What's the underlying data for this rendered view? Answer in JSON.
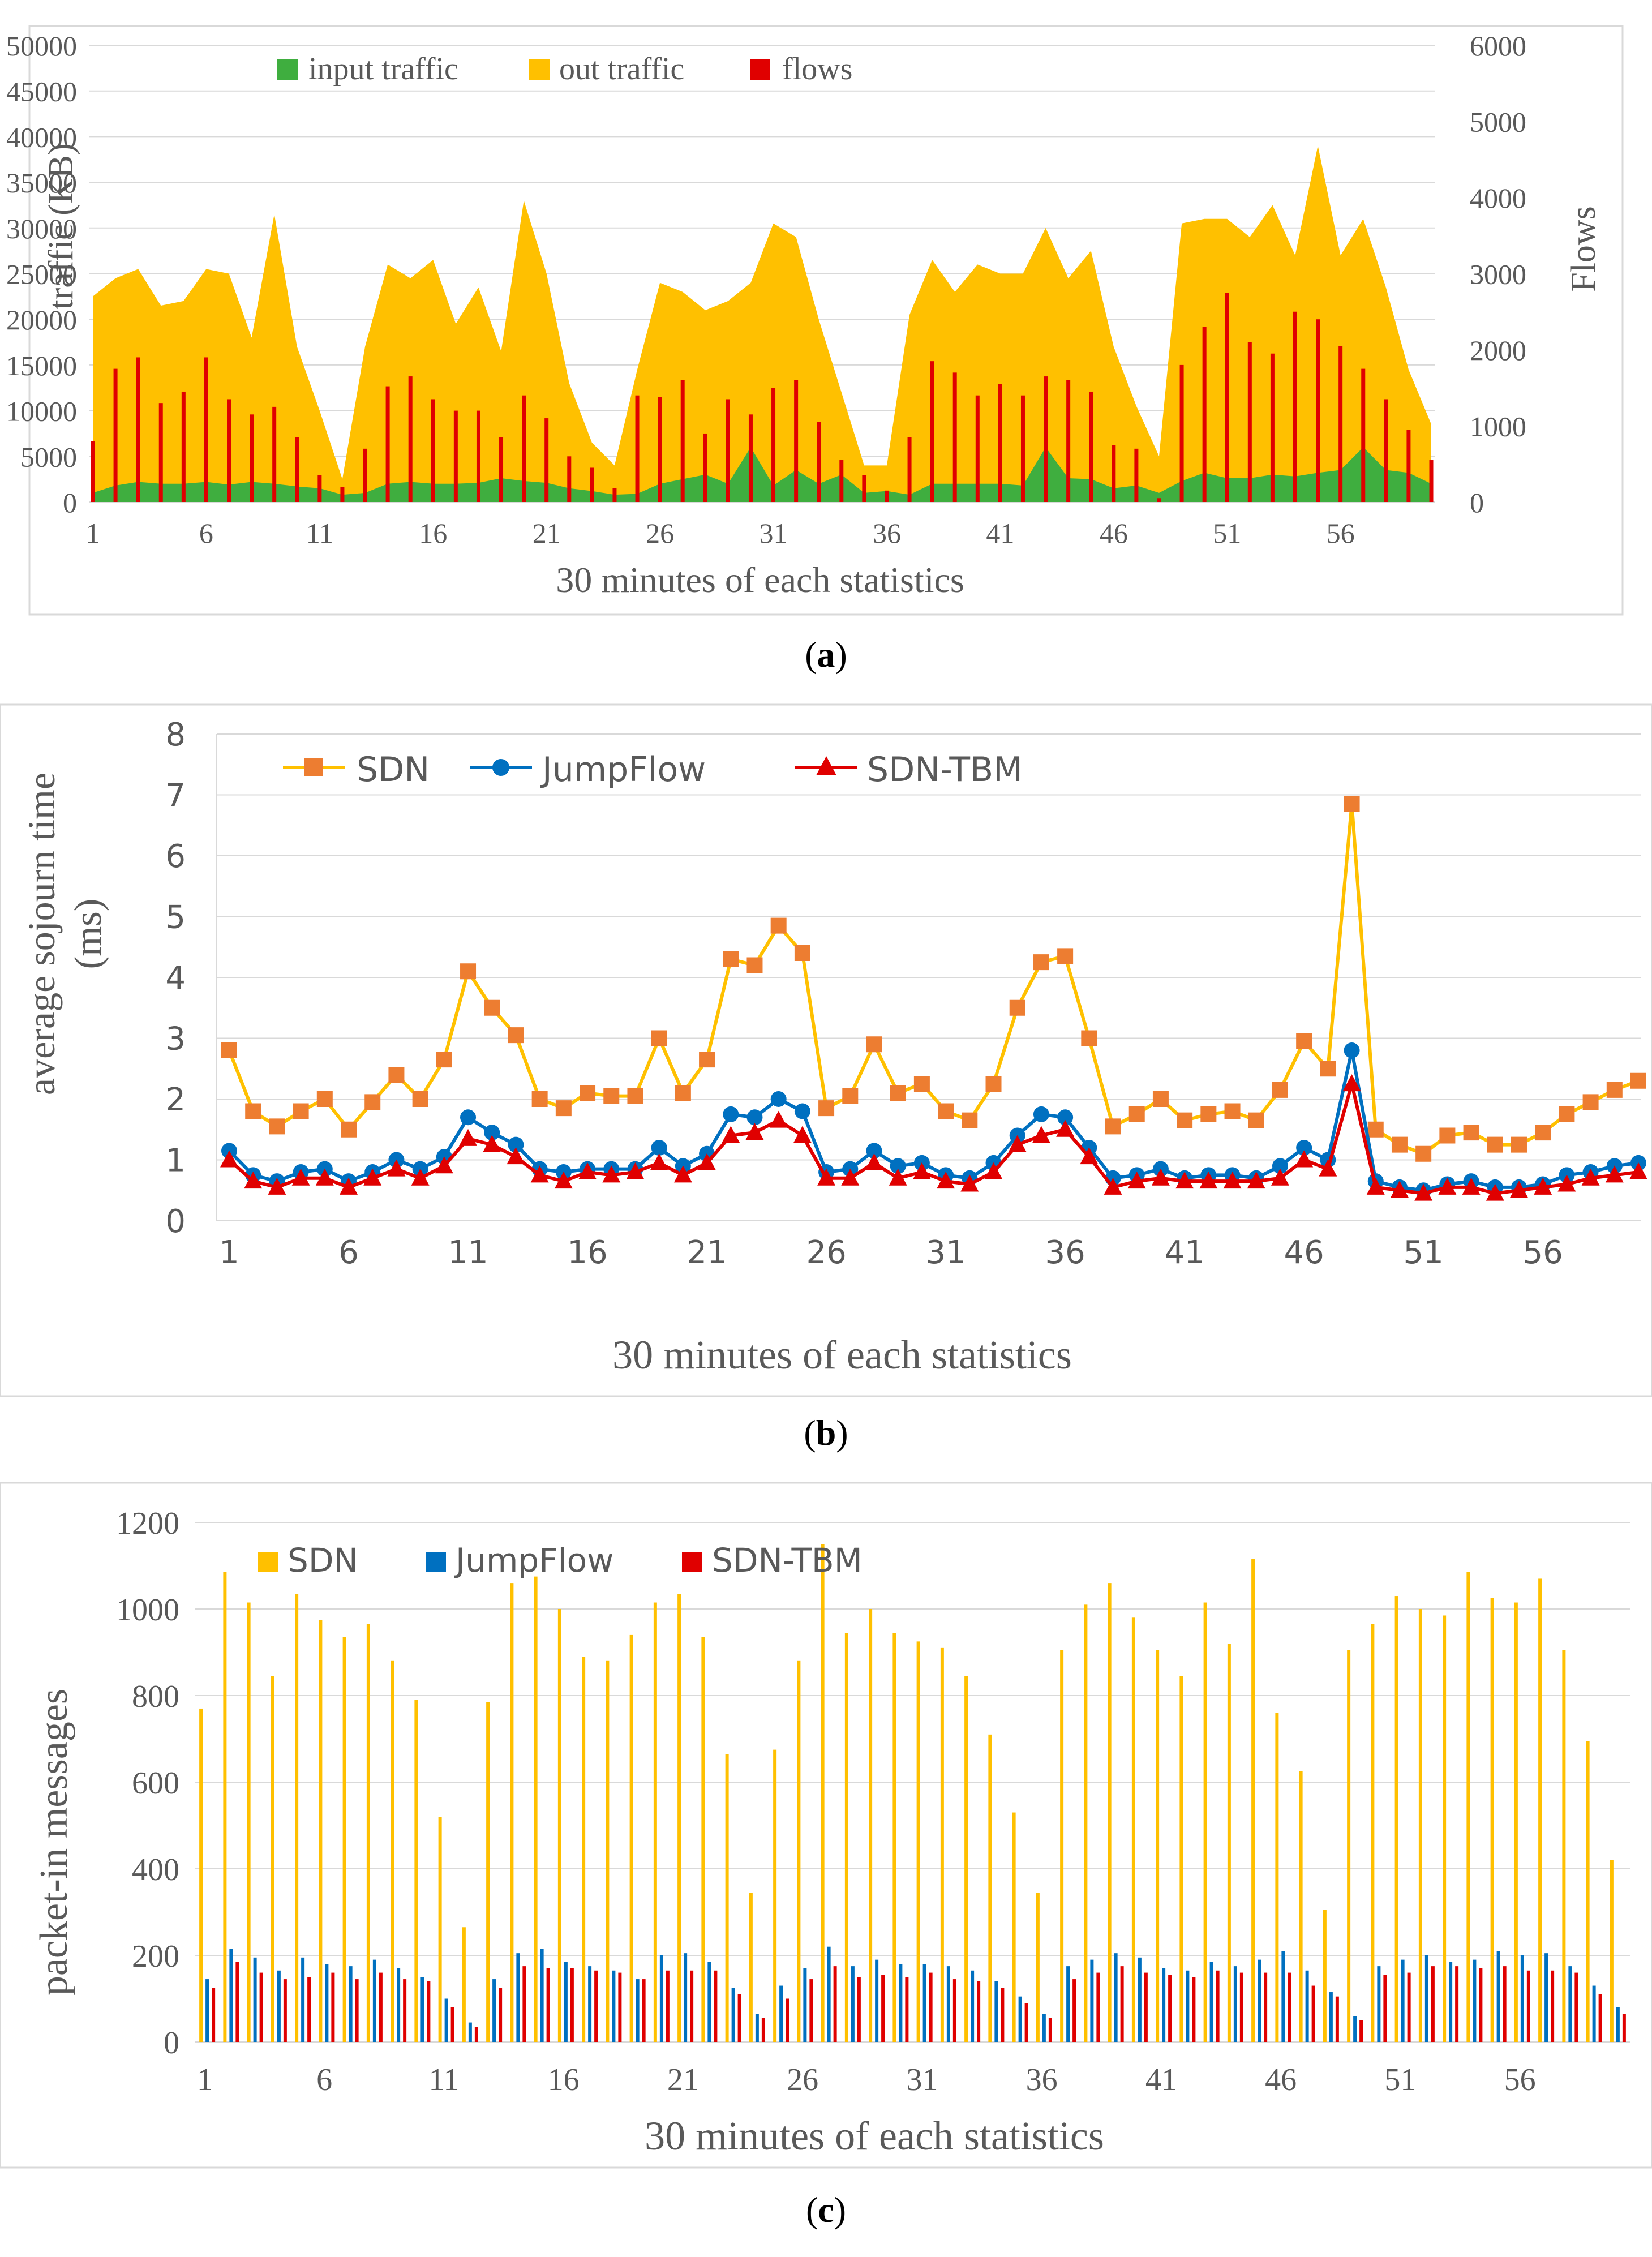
{
  "chart_data": [
    {
      "id": "a",
      "type": "area+bar",
      "caption": "(a)",
      "xlabel": "30 minutes of each statistics",
      "ylabel_left": "traffic (KB)",
      "ylabel_right": "Flows",
      "ylim_left": [
        0,
        50000
      ],
      "ylim_right": [
        0,
        6000
      ],
      "yticks_left": [
        "0",
        "5000",
        "10000",
        "15000",
        "20000",
        "25000",
        "30000",
        "35000",
        "40000",
        "45000",
        "50000"
      ],
      "yticks_right": [
        "0",
        "1000",
        "2000",
        "3000",
        "4000",
        "5000",
        "6000"
      ],
      "xticks": [
        "1",
        "6",
        "11",
        "16",
        "21",
        "26",
        "31",
        "36",
        "41",
        "46",
        "51",
        "56"
      ],
      "legend": [
        "input traffic",
        "out traffic",
        "flows"
      ],
      "colors": {
        "input": "#3fae3f",
        "out": "#ffc000",
        "flows": "#e00000",
        "grid": "#d9d9d9",
        "text": "#595959"
      },
      "x": [
        1,
        2,
        3,
        4,
        5,
        6,
        7,
        8,
        9,
        10,
        11,
        12,
        13,
        14,
        15,
        16,
        17,
        18,
        19,
        20,
        21,
        22,
        23,
        24,
        25,
        26,
        27,
        28,
        29,
        30,
        31,
        32,
        33,
        34,
        35,
        36,
        37,
        38,
        39,
        40,
        41,
        42,
        43,
        44,
        45,
        46,
        47,
        48,
        49,
        50,
        51,
        52,
        53,
        54,
        55,
        56,
        57,
        58,
        59,
        60
      ],
      "series": [
        {
          "name": "out traffic",
          "values": [
            22500,
            24500,
            25500,
            21500,
            22000,
            25500,
            25000,
            18000,
            31500,
            17000,
            10000,
            2500,
            17000,
            26000,
            24500,
            26500,
            19500,
            23500,
            16500,
            33000,
            25000,
            13000,
            6500,
            4000,
            14500,
            24000,
            23000,
            21000,
            22000,
            24000,
            30500,
            29000,
            20000,
            12000,
            4000,
            4000,
            20500,
            26500,
            23000,
            26000,
            25000,
            25000,
            30000,
            24500,
            27500,
            17000,
            10500,
            5000,
            30500,
            31000,
            31000,
            29000,
            32500,
            27000,
            39000,
            27000,
            31000,
            23500,
            14500,
            8500
          ]
        },
        {
          "name": "input traffic",
          "values": [
            1000,
            1800,
            2200,
            2000,
            2000,
            2200,
            1900,
            2200,
            2000,
            1700,
            1500,
            800,
            1000,
            2000,
            2200,
            2000,
            2000,
            2100,
            2600,
            2300,
            2100,
            1500,
            1200,
            800,
            900,
            2000,
            2500,
            3000,
            2000,
            6000,
            1800,
            3500,
            2000,
            3000,
            1000,
            1200,
            800,
            2000,
            2000,
            2000,
            2000,
            1800,
            6000,
            2600,
            2500,
            1500,
            1800,
            1000,
            2300,
            3200,
            2600,
            2600,
            3000,
            2800,
            3200,
            3500,
            6000,
            3500,
            3200,
            2000
          ]
        },
        {
          "name": "flows",
          "values": [
            800,
            1750,
            1900,
            1300,
            1450,
            1900,
            1350,
            1150,
            1250,
            850,
            350,
            200,
            700,
            1520,
            1650,
            1350,
            1200,
            1200,
            850,
            1400,
            1100,
            600,
            450,
            180,
            1400,
            1380,
            1600,
            900,
            1350,
            1150,
            1500,
            1600,
            1050,
            550,
            350,
            150,
            850,
            1850,
            1700,
            1400,
            1550,
            1400,
            1650,
            1600,
            1450,
            750,
            700,
            50,
            1800,
            2300,
            2750,
            2100,
            1950,
            2500,
            2400,
            2050,
            1750,
            1350,
            950,
            550
          ]
        }
      ]
    },
    {
      "id": "b",
      "type": "line",
      "caption": "(b)",
      "xlabel": "30 minutes of each statistics",
      "ylabel_line1": "average sojourn time",
      "ylabel_line2": "(ms)",
      "ylim": [
        0,
        8
      ],
      "yticks": [
        "0",
        "1",
        "2",
        "3",
        "4",
        "5",
        "6",
        "7",
        "8"
      ],
      "xticks": [
        "1",
        "6",
        "11",
        "16",
        "21",
        "26",
        "31",
        "36",
        "41",
        "46",
        "51",
        "56"
      ],
      "legend": [
        "SDN",
        "JumpFlow",
        "SDN-TBM"
      ],
      "colors": {
        "SDN_line": "#ffc000",
        "SDN_marker": "#ed7d31",
        "JumpFlow": "#0070c0",
        "SDNTBM": "#e00000",
        "grid": "#d9d9d9",
        "text": "#595959"
      },
      "x": [
        1,
        2,
        3,
        4,
        5,
        6,
        7,
        8,
        9,
        10,
        11,
        12,
        13,
        14,
        15,
        16,
        17,
        18,
        19,
        20,
        21,
        22,
        23,
        24,
        25,
        26,
        27,
        28,
        29,
        30,
        31,
        32,
        33,
        34,
        35,
        36,
        37,
        38,
        39,
        40,
        41,
        42,
        43,
        44,
        45,
        46,
        47,
        48,
        49,
        50,
        51,
        52,
        53,
        54,
        55,
        56,
        57,
        58,
        59,
        60
      ],
      "series": [
        {
          "name": "SDN",
          "values": [
            2.8,
            1.8,
            1.55,
            1.8,
            2.0,
            1.5,
            1.95,
            2.4,
            2.0,
            2.65,
            4.1,
            3.5,
            3.05,
            2.0,
            1.85,
            2.1,
            2.05,
            2.05,
            3.0,
            2.1,
            2.65,
            4.3,
            4.2,
            4.85,
            4.4,
            1.85,
            2.05,
            2.9,
            2.1,
            2.25,
            1.8,
            1.65,
            2.25,
            3.5,
            4.25,
            4.35,
            3.0,
            1.55,
            1.75,
            2.0,
            1.65,
            1.75,
            1.8,
            1.65,
            2.15,
            2.95,
            2.5,
            6.85,
            1.5,
            1.25,
            1.1,
            1.4,
            1.45,
            1.25,
            1.25,
            1.45,
            1.75,
            1.95,
            2.15,
            2.3
          ]
        },
        {
          "name": "JumpFlow",
          "values": [
            1.15,
            0.75,
            0.65,
            0.8,
            0.85,
            0.65,
            0.8,
            1.0,
            0.85,
            1.05,
            1.7,
            1.45,
            1.25,
            0.85,
            0.8,
            0.85,
            0.85,
            0.85,
            1.2,
            0.9,
            1.1,
            1.75,
            1.7,
            2.0,
            1.8,
            0.8,
            0.85,
            1.15,
            0.9,
            0.95,
            0.75,
            0.7,
            0.95,
            1.4,
            1.75,
            1.7,
            1.2,
            0.7,
            0.75,
            0.85,
            0.7,
            0.75,
            0.75,
            0.7,
            0.9,
            1.2,
            1.0,
            2.8,
            0.65,
            0.55,
            0.5,
            0.6,
            0.65,
            0.55,
            0.55,
            0.6,
            0.75,
            0.8,
            0.9,
            0.95
          ]
        },
        {
          "name": "SDN-TBM",
          "values": [
            1.0,
            0.65,
            0.55,
            0.7,
            0.7,
            0.55,
            0.7,
            0.85,
            0.7,
            0.9,
            1.35,
            1.25,
            1.05,
            0.75,
            0.65,
            0.8,
            0.75,
            0.8,
            0.95,
            0.75,
            0.95,
            1.4,
            1.45,
            1.65,
            1.4,
            0.7,
            0.7,
            0.95,
            0.7,
            0.8,
            0.65,
            0.6,
            0.8,
            1.25,
            1.4,
            1.5,
            1.05,
            0.55,
            0.65,
            0.7,
            0.65,
            0.65,
            0.65,
            0.65,
            0.7,
            1.0,
            0.85,
            2.25,
            0.55,
            0.5,
            0.45,
            0.55,
            0.55,
            0.45,
            0.5,
            0.55,
            0.6,
            0.7,
            0.75,
            0.8
          ]
        }
      ]
    },
    {
      "id": "c",
      "type": "bar",
      "caption": "(c)",
      "xlabel": "30 minutes of each statistics",
      "ylabel": "packet-in messages",
      "ylim": [
        0,
        1200
      ],
      "yticks": [
        "0",
        "200",
        "400",
        "600",
        "800",
        "1000",
        "1200"
      ],
      "xticks": [
        "1",
        "6",
        "11",
        "16",
        "21",
        "26",
        "31",
        "36",
        "41",
        "46",
        "51",
        "56"
      ],
      "legend": [
        "SDN",
        "JumpFlow",
        "SDN-TBM"
      ],
      "colors": {
        "SDN": "#ffc000",
        "JumpFlow": "#0070c0",
        "SDNTBM": "#e00000",
        "grid": "#d9d9d9",
        "text": "#595959"
      },
      "x": [
        1,
        2,
        3,
        4,
        5,
        6,
        7,
        8,
        9,
        10,
        11,
        12,
        13,
        14,
        15,
        16,
        17,
        18,
        19,
        20,
        21,
        22,
        23,
        24,
        25,
        26,
        27,
        28,
        29,
        30,
        31,
        32,
        33,
        34,
        35,
        36,
        37,
        38,
        39,
        40,
        41,
        42,
        43,
        44,
        45,
        46,
        47,
        48,
        49,
        50,
        51,
        52,
        53,
        54,
        55,
        56,
        57,
        58,
        59,
        60
      ],
      "series": [
        {
          "name": "SDN",
          "values": [
            770,
            1085,
            1015,
            845,
            1035,
            975,
            935,
            965,
            880,
            790,
            520,
            265,
            785,
            1060,
            1075,
            1000,
            890,
            880,
            940,
            1015,
            1035,
            935,
            665,
            345,
            675,
            880,
            1150,
            945,
            1000,
            945,
            925,
            910,
            845,
            710,
            530,
            345,
            905,
            1010,
            1060,
            980,
            905,
            845,
            1015,
            920,
            1115,
            760,
            625,
            305,
            905,
            965,
            1030,
            1000,
            985,
            1085,
            1025,
            1015,
            1070,
            905,
            695,
            420
          ]
        },
        {
          "name": "JumpFlow",
          "values": [
            145,
            215,
            195,
            165,
            195,
            180,
            175,
            190,
            170,
            150,
            100,
            45,
            145,
            205,
            215,
            185,
            175,
            165,
            145,
            200,
            205,
            185,
            125,
            65,
            130,
            170,
            220,
            175,
            190,
            180,
            180,
            175,
            165,
            140,
            105,
            65,
            175,
            190,
            205,
            195,
            170,
            165,
            185,
            175,
            190,
            210,
            165,
            115,
            60,
            175,
            190,
            200,
            185,
            190,
            210,
            200,
            205,
            175,
            130,
            80
          ]
        },
        {
          "name": "SDN-TBM",
          "values": [
            125,
            185,
            160,
            145,
            150,
            160,
            145,
            160,
            145,
            140,
            80,
            35,
            125,
            175,
            170,
            170,
            165,
            160,
            145,
            165,
            165,
            165,
            110,
            55,
            100,
            145,
            175,
            150,
            155,
            150,
            160,
            145,
            140,
            125,
            90,
            55,
            145,
            160,
            175,
            160,
            155,
            150,
            165,
            160,
            160,
            160,
            130,
            105,
            50,
            155,
            160,
            175,
            175,
            170,
            175,
            165,
            165,
            160,
            110,
            65
          ]
        }
      ]
    }
  ]
}
